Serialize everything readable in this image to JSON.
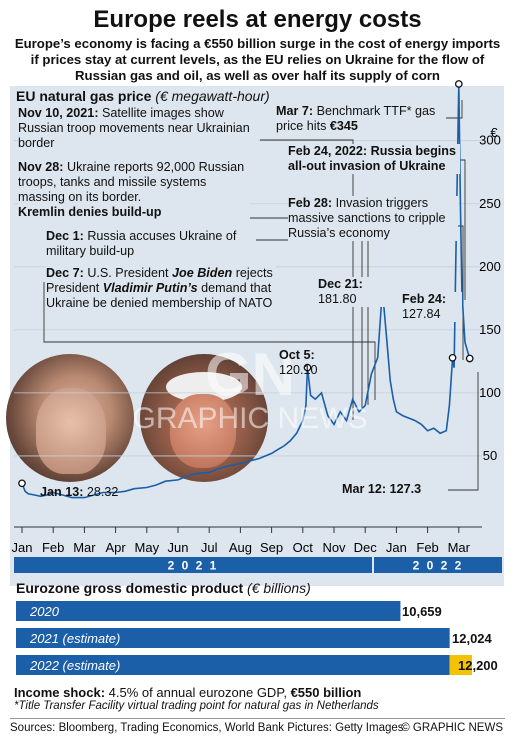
{
  "title": "Europe reels at energy costs",
  "subtitle": "Europe’s economy is facing a €550 billion surge in the cost of energy imports if prices stay at current levels, as the EU relies on Ukraine for the flow of Russian gas and oil, as well as over half its supply of corn",
  "chart_title": "EU natural gas price",
  "chart_unit": "(€ megawatt-hour)",
  "annotations": {
    "nov10": {
      "date": "Nov 10, 2021:",
      "text": "Satellite images show Russian troop movements near Ukrainian border"
    },
    "nov28": {
      "date": "Nov 28:",
      "text": "Ukraine reports 92,000 Russian troops, tanks and missile systems massing on its border.",
      "bold": "Kremlin denies build-up"
    },
    "dec1": {
      "date": "Dec 1:",
      "text": "Russia accuses Ukraine of military build-up"
    },
    "dec7": {
      "date": "Dec 7:",
      "text1": "U.S. President",
      "biden": "Joe Biden",
      "text2": "rejects President",
      "putin": "Vladimir Putin’s",
      "text3": "demand that Ukraine be denied membership of NATO"
    },
    "mar7": {
      "date": "Mar 7:",
      "text": "Benchmark TTF* gas price hits",
      "value": "€345"
    },
    "feb24": {
      "text": "Feb 24, 2022: Russia begins all-out invasion of Ukraine"
    },
    "feb28": {
      "date": "Feb 28:",
      "text": "Invasion triggers massive sanctions to cripple Russia’s economy"
    },
    "dec21": {
      "date": "Dec 21:",
      "value": "181.80"
    },
    "feb24v": {
      "date": "Feb 24:",
      "value": "127.84"
    },
    "oct5": {
      "date": "Oct 5:",
      "value": "120.10"
    },
    "jan13": {
      "date": "Jan 13:",
      "value": "28.32"
    },
    "mar12": {
      "date": "Mar 12:",
      "value": "127.3"
    }
  },
  "watermark": {
    "big": "GN",
    "small": "GRAPHIC NEWS"
  },
  "chart_data": [
    {
      "type": "line",
      "title": "EU natural gas price",
      "ylabel": "€ megawatt-hour",
      "y_axis_symbol": "€",
      "ylim": [
        0,
        345
      ],
      "yticks": [
        50,
        100,
        150,
        200,
        250,
        300
      ],
      "x_ticks": [
        "Jan",
        "Feb",
        "Mar",
        "Apr",
        "May",
        "Jun",
        "Jul",
        "Aug",
        "Sep",
        "Oct",
        "Nov",
        "Dec",
        "Jan",
        "Feb",
        "Mar"
      ],
      "year_labels": [
        "2 0 2 1",
        "2 0 2 2"
      ],
      "series": [
        {
          "color": "#1a5fa8",
          "x": [
            0,
            0.1,
            0.2,
            0.4,
            0.6,
            0.8,
            1,
            1.3,
            1.6,
            2,
            2.3,
            2.6,
            3,
            3.3,
            3.6,
            4,
            4.3,
            4.6,
            5,
            5.3,
            5.6,
            6,
            6.3,
            6.6,
            7,
            7.3,
            7.6,
            8,
            8.2,
            8.4,
            8.6,
            8.8,
            9,
            9.1,
            9.15,
            9.25,
            9.4,
            9.6,
            9.8,
            10,
            10.2,
            10.4,
            10.6,
            10.8,
            11,
            11.2,
            11.4,
            11.55,
            11.7,
            11.8,
            11.9,
            12,
            12.2,
            12.4,
            12.6,
            12.8,
            13,
            13.2,
            13.4,
            13.6,
            13.7,
            13.8,
            13.85,
            13.9,
            14,
            14.05,
            14.1,
            14.2,
            14.35
          ],
          "y": [
            28.32,
            22,
            20,
            19,
            18,
            19,
            21,
            19,
            17,
            17,
            19,
            21,
            21,
            22,
            24,
            25,
            27,
            30,
            31,
            34,
            36,
            37,
            40,
            42,
            44,
            46,
            48,
            52,
            55,
            58,
            62,
            68,
            78,
            90,
            120.1,
            98,
            95,
            100,
            82,
            75,
            85,
            78,
            95,
            85,
            90,
            115,
            128,
            181.8,
            140,
            110,
            95,
            85,
            82,
            80,
            78,
            75,
            70,
            72,
            68,
            70,
            90,
            127.84,
            120,
            200,
            345,
            250,
            180,
            140,
            127.3
          ]
        }
      ]
    },
    {
      "type": "bar",
      "title": "Eurozone gross domestic product",
      "ylabel": "€ billions",
      "categories": [
        "2020",
        "2021",
        "2022"
      ],
      "category_notes": [
        "",
        "(estimate)",
        "(estimate)"
      ],
      "values": [
        10659,
        12024,
        12200
      ],
      "value_labels": [
        "10,659",
        "12,024",
        "12,200"
      ],
      "colors": [
        "#1a5fa8",
        "#f5c200"
      ]
    }
  ],
  "gdp_title": "Eurozone gross domestic product",
  "gdp_unit": "(€ billions)",
  "shock": {
    "label": "Income shock:",
    "text": "4.5% of annual eurozone GDP,",
    "value": "€550 billion"
  },
  "footnote": "*Title Transfer Facility virtual trading point for natural gas in Netherlands",
  "sources": "Sources: Bloomberg, Trading Economics, World Bank  Pictures: Getty Images",
  "credit": "© GRAPHIC NEWS"
}
